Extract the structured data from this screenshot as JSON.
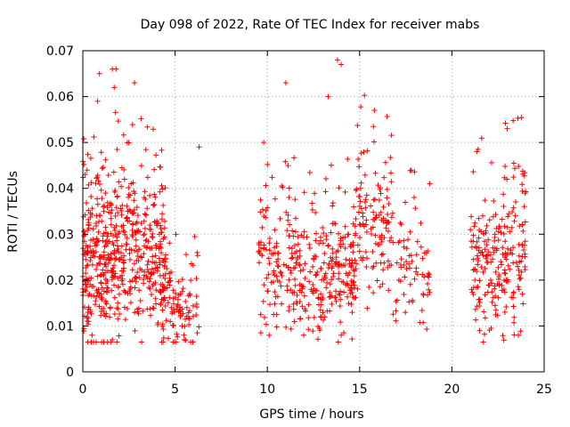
{
  "chart_data": {
    "type": "scatter",
    "title": "Day 098 of 2022, Rate Of TEC Index for receiver mabs",
    "xlabel": "GPS time / hours",
    "ylabel": "ROTI / TECUs",
    "xlim": [
      0,
      25
    ],
    "ylim": [
      0,
      0.07
    ],
    "x_ticks": [
      "0",
      "5",
      "10",
      "15",
      "20",
      "25"
    ],
    "y_ticks": [
      "0",
      "0.01",
      "0.02",
      "0.03",
      "0.04",
      "0.05",
      "0.06",
      "0.07"
    ],
    "grid": true,
    "marker": "plus",
    "color": "#ff0000",
    "clusters": [
      {
        "x_range": [
          0.0,
          2.0
        ],
        "y_center": 0.024,
        "y_spread": 0.009,
        "density": 300
      },
      {
        "x_range": [
          2.0,
          4.5
        ],
        "y_center": 0.026,
        "y_spread": 0.008,
        "density": 260
      },
      {
        "x_range": [
          4.0,
          6.3
        ],
        "y_center": 0.015,
        "y_spread": 0.005,
        "density": 110
      },
      {
        "x_range": [
          9.5,
          12.5
        ],
        "y_center": 0.022,
        "y_spread": 0.007,
        "density": 180
      },
      {
        "x_range": [
          12.5,
          14.8
        ],
        "y_center": 0.021,
        "y_spread": 0.007,
        "density": 180
      },
      {
        "x_range": [
          14.8,
          16.8
        ],
        "y_center": 0.033,
        "y_spread": 0.008,
        "density": 120
      },
      {
        "x_range": [
          16.8,
          18.8
        ],
        "y_center": 0.022,
        "y_spread": 0.006,
        "density": 70
      },
      {
        "x_range": [
          21.0,
          22.5
        ],
        "y_center": 0.025,
        "y_spread": 0.008,
        "density": 110
      },
      {
        "x_range": [
          22.5,
          24.0
        ],
        "y_center": 0.026,
        "y_spread": 0.008,
        "density": 120
      }
    ],
    "highlights": [
      {
        "x": 0.9,
        "y": 0.065
      },
      {
        "x": 1.6,
        "y": 0.066
      },
      {
        "x": 1.8,
        "y": 0.066
      },
      {
        "x": 1.7,
        "y": 0.062
      },
      {
        "x": 2.8,
        "y": 0.063
      },
      {
        "x": 0.8,
        "y": 0.059
      },
      {
        "x": 13.8,
        "y": 0.068
      },
      {
        "x": 14.0,
        "y": 0.067
      },
      {
        "x": 11.0,
        "y": 0.063
      },
      {
        "x": 13.3,
        "y": 0.06
      },
      {
        "x": 15.8,
        "y": 0.057
      },
      {
        "x": 23.0,
        "y": 0.053
      },
      {
        "x": 6.3,
        "y": 0.049
      },
      {
        "x": 9.8,
        "y": 0.05
      },
      {
        "x": 18.8,
        "y": 0.041
      },
      {
        "x": 0.5,
        "y": 0.008
      },
      {
        "x": 1.6,
        "y": 0.007
      },
      {
        "x": 5.5,
        "y": 0.007
      },
      {
        "x": 14.0,
        "y": 0.008
      },
      {
        "x": 23.6,
        "y": 0.008
      },
      {
        "x": 21.5,
        "y": 0.009
      }
    ]
  }
}
